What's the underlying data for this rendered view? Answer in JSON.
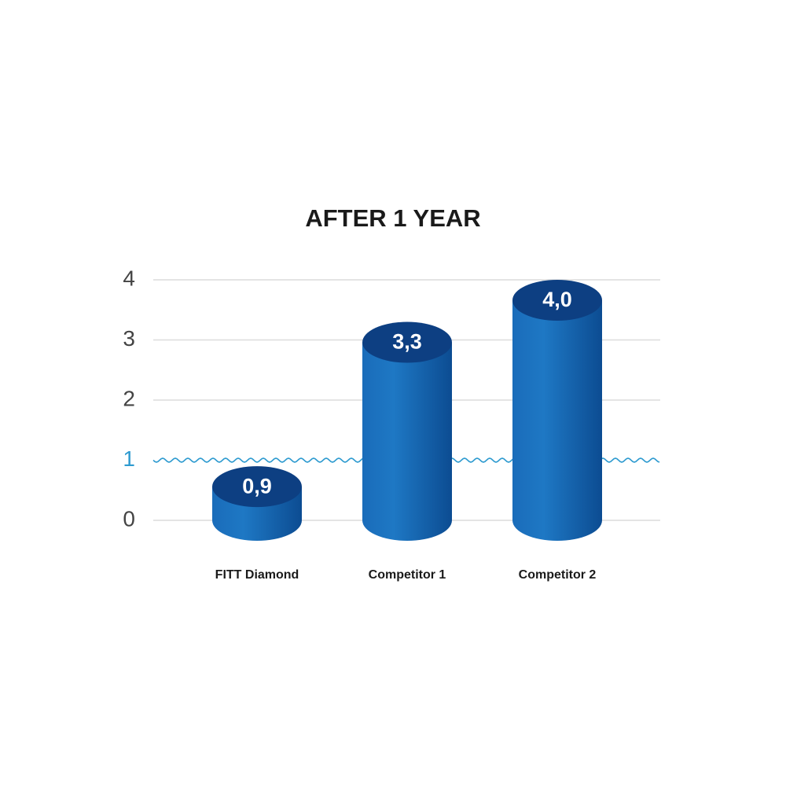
{
  "chart_data": {
    "type": "bar",
    "title": "AFTER 1 YEAR",
    "categories": [
      "FITT Diamond",
      "Competitor 1",
      "Competitor 2"
    ],
    "values": [
      0.9,
      3.3,
      4.0
    ],
    "value_labels": [
      "0,9",
      "3,3",
      "4,0"
    ],
    "color": "#1565b0",
    "ylim": [
      0,
      4
    ],
    "yticks": [
      0,
      1,
      2,
      3,
      4
    ],
    "grid": true,
    "reference_line": 1,
    "reference_color": "#2f9bd0"
  }
}
